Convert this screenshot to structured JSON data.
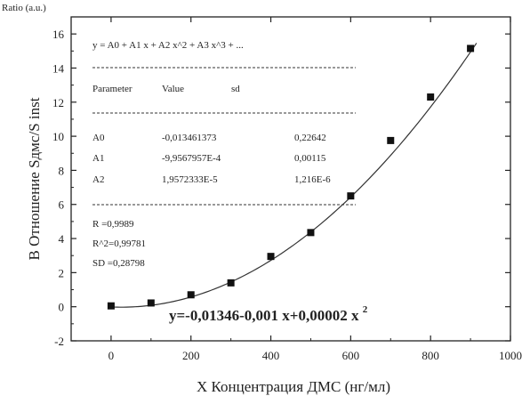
{
  "corner_label": "Ratio (a.u.)",
  "chart_data": {
    "type": "scatter",
    "xlabel": "X Концентрация ДМС (нг/мл)",
    "ylabel": "B  Отношение Sдмс/S inst",
    "xlim": [
      -100,
      1000
    ],
    "ylim": [
      -2,
      17
    ],
    "xticks": [
      0,
      200,
      400,
      600,
      800,
      1000
    ],
    "yticks": [
      -2,
      0,
      2,
      4,
      6,
      8,
      10,
      12,
      14,
      16
    ],
    "grid": false,
    "series": [
      {
        "x": [
          0,
          100,
          200,
          300,
          400,
          500,
          600,
          700,
          800,
          900
        ],
        "y": [
          0.05,
          0.22,
          0.7,
          1.4,
          2.95,
          4.35,
          6.5,
          9.75,
          12.3,
          15.15
        ]
      }
    ],
    "fit": {
      "type": "polynomial",
      "coefficients": [
        -0.013461373,
        -0.00099567957,
        1.9572333e-05
      ],
      "x_range": [
        0,
        915
      ]
    },
    "fit_report": {
      "model": "y = A0 + A1 x + A2 x^2 + A3 x^3 + ...",
      "headers": [
        "Parameter",
        "Value",
        "sd"
      ],
      "rows": [
        {
          "param": "A0",
          "value": "-0,013461373",
          "sd": "0,22642"
        },
        {
          "param": "A1",
          "value": "-9,9567957E-4",
          "sd": "0,00115"
        },
        {
          "param": "A2",
          "value": "1,9572333E-5",
          "sd": "1,216E-6"
        }
      ],
      "stats": [
        "R  =0,9989",
        "R^2=0,99781",
        "SD =0,28798"
      ]
    },
    "equation": {
      "main": "y=-0,01346-0,001 x+0,00002 x",
      "superscript": "2"
    }
  }
}
